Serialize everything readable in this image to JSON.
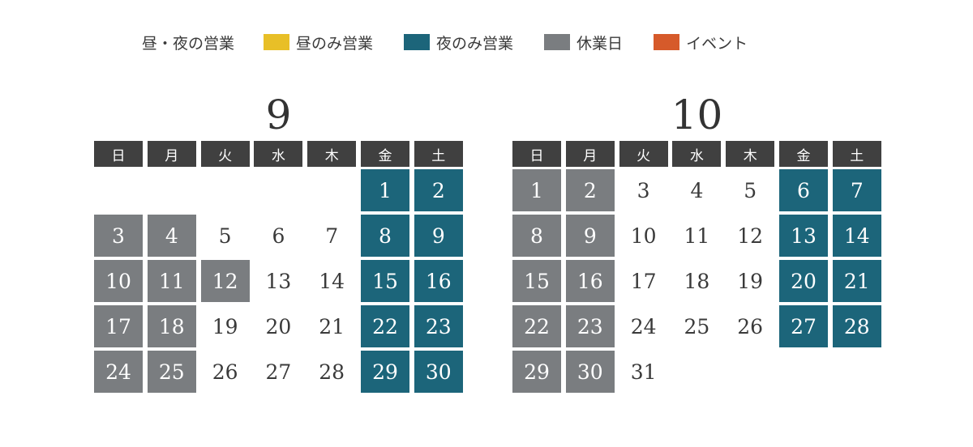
{
  "legend": [
    {
      "label": "昼・夜の営業",
      "color": null,
      "icon": null
    },
    {
      "label": "昼のみ営業",
      "color": "#e8bf27",
      "icon": "yellow-swatch"
    },
    {
      "label": "夜のみ営業",
      "color": "#1c657a",
      "icon": "teal-swatch"
    },
    {
      "label": "休業日",
      "color": "#7a7d80",
      "icon": "gray-swatch"
    },
    {
      "label": "イベント",
      "color": "#d65a2a",
      "icon": "orange-swatch"
    }
  ],
  "weekdays": [
    "日",
    "月",
    "火",
    "水",
    "木",
    "金",
    "土"
  ],
  "months": [
    {
      "title": "9",
      "start_offset": 5,
      "days": [
        {
          "d": "1",
          "s": "night"
        },
        {
          "d": "2",
          "s": "night"
        },
        {
          "d": "3",
          "s": "closed"
        },
        {
          "d": "4",
          "s": "closed"
        },
        {
          "d": "5",
          "s": "open"
        },
        {
          "d": "6",
          "s": "open"
        },
        {
          "d": "7",
          "s": "open"
        },
        {
          "d": "8",
          "s": "night"
        },
        {
          "d": "9",
          "s": "night"
        },
        {
          "d": "10",
          "s": "closed"
        },
        {
          "d": "11",
          "s": "closed"
        },
        {
          "d": "12",
          "s": "closed"
        },
        {
          "d": "13",
          "s": "open"
        },
        {
          "d": "14",
          "s": "open"
        },
        {
          "d": "15",
          "s": "night"
        },
        {
          "d": "16",
          "s": "night"
        },
        {
          "d": "17",
          "s": "closed"
        },
        {
          "d": "18",
          "s": "closed"
        },
        {
          "d": "19",
          "s": "open"
        },
        {
          "d": "20",
          "s": "open"
        },
        {
          "d": "21",
          "s": "open"
        },
        {
          "d": "22",
          "s": "night"
        },
        {
          "d": "23",
          "s": "night"
        },
        {
          "d": "24",
          "s": "closed"
        },
        {
          "d": "25",
          "s": "closed"
        },
        {
          "d": "26",
          "s": "open"
        },
        {
          "d": "27",
          "s": "open"
        },
        {
          "d": "28",
          "s": "open"
        },
        {
          "d": "29",
          "s": "night"
        },
        {
          "d": "30",
          "s": "night"
        }
      ]
    },
    {
      "title": "10",
      "start_offset": 0,
      "days": [
        {
          "d": "1",
          "s": "closed"
        },
        {
          "d": "2",
          "s": "closed"
        },
        {
          "d": "3",
          "s": "open"
        },
        {
          "d": "4",
          "s": "open"
        },
        {
          "d": "5",
          "s": "open"
        },
        {
          "d": "6",
          "s": "night"
        },
        {
          "d": "7",
          "s": "night"
        },
        {
          "d": "8",
          "s": "closed"
        },
        {
          "d": "9",
          "s": "closed"
        },
        {
          "d": "10",
          "s": "open"
        },
        {
          "d": "11",
          "s": "open"
        },
        {
          "d": "12",
          "s": "open"
        },
        {
          "d": "13",
          "s": "night"
        },
        {
          "d": "14",
          "s": "night"
        },
        {
          "d": "15",
          "s": "closed"
        },
        {
          "d": "16",
          "s": "closed"
        },
        {
          "d": "17",
          "s": "open"
        },
        {
          "d": "18",
          "s": "open"
        },
        {
          "d": "19",
          "s": "open"
        },
        {
          "d": "20",
          "s": "night"
        },
        {
          "d": "21",
          "s": "night"
        },
        {
          "d": "22",
          "s": "closed"
        },
        {
          "d": "23",
          "s": "closed"
        },
        {
          "d": "24",
          "s": "open"
        },
        {
          "d": "25",
          "s": "open"
        },
        {
          "d": "26",
          "s": "open"
        },
        {
          "d": "27",
          "s": "night"
        },
        {
          "d": "28",
          "s": "night"
        },
        {
          "d": "29",
          "s": "closed"
        },
        {
          "d": "30",
          "s": "closed"
        },
        {
          "d": "31",
          "s": "open"
        }
      ]
    }
  ]
}
